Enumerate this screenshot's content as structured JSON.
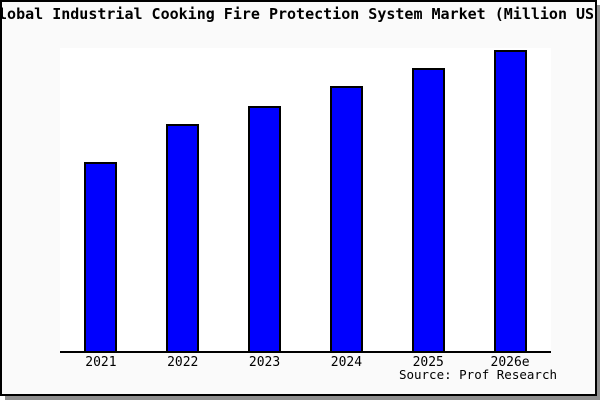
{
  "window": {
    "background": "#fafafa",
    "border_color": "#000000",
    "shadow_color": "#8f8f8f"
  },
  "chart_data": {
    "type": "bar",
    "title": "Global Industrial Cooking Fire Protection System Market (Million USD)",
    "categories": [
      "2021",
      "2022",
      "2023",
      "2024",
      "2025",
      "2026e"
    ],
    "values": [
      62.4,
      74.8,
      80.9,
      87.5,
      93.4,
      99.3
    ],
    "values_unit": "percent of plot height (y-axis is unlabeled in the image)",
    "xlabel": "",
    "ylabel": "",
    "ylim": [
      0,
      100
    ],
    "grid": false,
    "legend": false,
    "y_axis_visible": false,
    "bar_color": "#0000fe",
    "bar_border_color": "#000000",
    "plot_background": "#ffffff",
    "source": "Source: Prof Research"
  }
}
